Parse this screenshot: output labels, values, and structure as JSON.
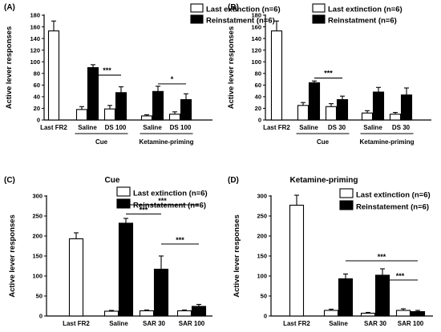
{
  "colors": {
    "white_bar": "#ffffff",
    "black_bar": "#000000",
    "stroke": "#000000"
  },
  "chart_data": [
    {
      "panel": "(A)",
      "type": "bar",
      "title": "",
      "ylabel": "Active lever responses",
      "ylim": [
        0,
        180
      ],
      "yticks": [
        0,
        20,
        40,
        60,
        80,
        100,
        120,
        140,
        160,
        180
      ],
      "legend": {
        "placement": "top-right",
        "entries": [
          "Last extinction (n=6)",
          "Reinstatment (n=6)"
        ]
      },
      "series": [
        {
          "name": "Last extinction (n=6)",
          "color": "white"
        },
        {
          "name": "Reinstatment (n=6)",
          "color": "black"
        }
      ],
      "groups": [
        {
          "label": "Last FR2",
          "bars": [
            {
              "series": 0,
              "value": 153,
              "err": 17
            }
          ]
        },
        {
          "label": "Saline",
          "bars": [
            {
              "series": 0,
              "value": 18,
              "err": 5
            },
            {
              "series": 1,
              "value": 90,
              "err": 5
            }
          ]
        },
        {
          "label": "DS 100",
          "bars": [
            {
              "series": 0,
              "value": 19,
              "err": 6
            },
            {
              "series": 1,
              "value": 47,
              "err": 10
            }
          ]
        },
        {
          "label": "Saline",
          "bars": [
            {
              "series": 0,
              "value": 7,
              "err": 2
            },
            {
              "series": 1,
              "value": 49,
              "err": 9
            }
          ]
        },
        {
          "label": "DS 100",
          "bars": [
            {
              "series": 0,
              "value": 10,
              "err": 4
            },
            {
              "series": 1,
              "value": 35,
              "err": 10
            }
          ]
        }
      ],
      "treatment_groups": [
        {
          "label": "Cue",
          "from": 1,
          "to": 2
        },
        {
          "label": "Ketamine-priming",
          "from": 3,
          "to": 4
        }
      ],
      "significance": [
        {
          "label": "***",
          "from": 1,
          "to": 2,
          "y": 77
        },
        {
          "label": "*",
          "from": 3,
          "to": 4,
          "y": 62
        }
      ]
    },
    {
      "panel": "(B)",
      "type": "bar",
      "title": "",
      "ylabel": "Active lever responses",
      "ylim": [
        0,
        180
      ],
      "yticks": [
        0,
        20,
        40,
        60,
        80,
        100,
        120,
        140,
        160,
        180
      ],
      "legend": {
        "placement": "top-right",
        "entries": [
          "Last extinction (n=6)",
          "Reinstatment (n=6)"
        ]
      },
      "series": [
        {
          "name": "Last extinction (n=6)",
          "color": "white"
        },
        {
          "name": "Reinstatment (n=6)",
          "color": "black"
        }
      ],
      "groups": [
        {
          "label": "Last FR2",
          "bars": [
            {
              "series": 0,
              "value": 153,
              "err": 17
            }
          ]
        },
        {
          "label": "Saline",
          "bars": [
            {
              "series": 0,
              "value": 25,
              "err": 5
            },
            {
              "series": 1,
              "value": 64,
              "err": 3
            }
          ]
        },
        {
          "label": "DS 30",
          "bars": [
            {
              "series": 0,
              "value": 23,
              "err": 5
            },
            {
              "series": 1,
              "value": 35,
              "err": 6
            }
          ]
        },
        {
          "label": "Saline",
          "bars": [
            {
              "series": 0,
              "value": 12,
              "err": 4
            },
            {
              "series": 1,
              "value": 48,
              "err": 8
            }
          ]
        },
        {
          "label": "DS 30",
          "bars": [
            {
              "series": 0,
              "value": 10,
              "err": 3
            },
            {
              "series": 1,
              "value": 43,
              "err": 12
            }
          ]
        }
      ],
      "treatment_groups": [
        {
          "label": "Cue",
          "from": 1,
          "to": 2
        },
        {
          "label": "Ketamine-priming",
          "from": 3,
          "to": 4
        }
      ],
      "significance": [
        {
          "label": "***",
          "from": 1,
          "to": 2,
          "y": 72
        }
      ]
    },
    {
      "panel": "(C)",
      "type": "bar",
      "title": "Cue",
      "ylabel": "Active lever responses",
      "ylim": [
        0,
        300
      ],
      "yticks": [
        0,
        50,
        100,
        150,
        200,
        250,
        300
      ],
      "legend": {
        "placement": "top-right",
        "entries": [
          "Last extinction (n=6)",
          "Reinstatement (n=6)"
        ]
      },
      "series": [
        {
          "name": "Last extinction (n=6)",
          "color": "white"
        },
        {
          "name": "Reinstatement (n=6)",
          "color": "black"
        }
      ],
      "groups": [
        {
          "label": "Last FR2",
          "bars": [
            {
              "series": 0,
              "value": 193,
              "err": 15
            }
          ]
        },
        {
          "label": "Saline",
          "bars": [
            {
              "series": 0,
              "value": 12,
              "err": 2
            },
            {
              "series": 1,
              "value": 232,
              "err": 12
            }
          ]
        },
        {
          "label": "SAR 30",
          "bars": [
            {
              "series": 0,
              "value": 13,
              "err": 2
            },
            {
              "series": 1,
              "value": 117,
              "err": 33
            }
          ]
        },
        {
          "label": "SAR 100",
          "bars": [
            {
              "series": 0,
              "value": 13,
              "err": 2
            },
            {
              "series": 1,
              "value": 24,
              "err": 5
            }
          ]
        }
      ],
      "significance": [
        {
          "label": "***",
          "from": 1,
          "to": 3,
          "y": 278
        },
        {
          "label": "***",
          "from": 1,
          "to": 2,
          "y": 255
        },
        {
          "label": "***",
          "from": 2,
          "to": 3,
          "y": 180
        }
      ]
    },
    {
      "panel": "(D)",
      "type": "bar",
      "title": "Ketamine-priming",
      "ylabel": "Active lever responses",
      "ylim": [
        0,
        300
      ],
      "yticks": [
        0,
        50,
        100,
        150,
        200,
        250,
        300
      ],
      "legend": {
        "placement": "top-right",
        "entries": [
          "Last extinction (n=6)",
          "Reinstatement (n=6)"
        ]
      },
      "series": [
        {
          "name": "Last extinction (n=6)",
          "color": "white"
        },
        {
          "name": "Reinstatement (n=6)",
          "color": "black"
        }
      ],
      "groups": [
        {
          "label": "Last FR2",
          "bars": [
            {
              "series": 0,
              "value": 277,
              "err": 25
            }
          ]
        },
        {
          "label": "Saline",
          "bars": [
            {
              "series": 0,
              "value": 14,
              "err": 3
            },
            {
              "series": 1,
              "value": 93,
              "err": 12
            }
          ]
        },
        {
          "label": "SAR 30",
          "bars": [
            {
              "series": 0,
              "value": 7,
              "err": 2
            },
            {
              "series": 1,
              "value": 102,
              "err": 16
            }
          ]
        },
        {
          "label": "SAR 100",
          "bars": [
            {
              "series": 0,
              "value": 14,
              "err": 4
            },
            {
              "series": 1,
              "value": 11,
              "err": 3
            }
          ]
        }
      ],
      "significance": [
        {
          "label": "***",
          "from": 1,
          "to": 3,
          "y": 138
        },
        {
          "label": "***",
          "from": 2,
          "to": 3,
          "y": 90
        }
      ]
    }
  ]
}
